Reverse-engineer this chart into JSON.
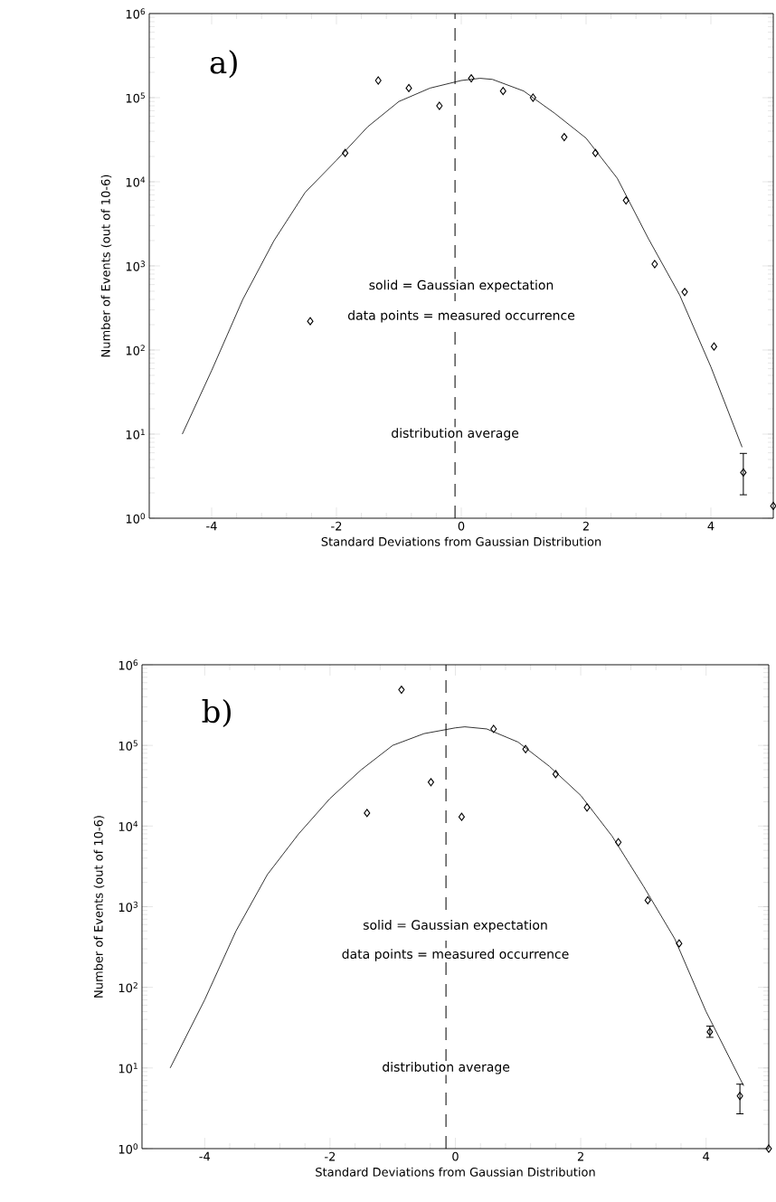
{
  "chart_data": [
    {
      "type": "scatter",
      "xlabel": "Standard Deviations from Gaussian Distribution",
      "ylabel": "Number of Events (out of 10-6)",
      "log": "y",
      "xlim": [
        -5,
        5
      ],
      "xticks": [
        -4,
        -2,
        0,
        2,
        4
      ],
      "ylim": [
        1,
        1000000
      ],
      "yticks": [
        {
          "value": 1,
          "label": "10$^{0}$"
        },
        {
          "value": 10,
          "label": "10$^{1}$"
        },
        {
          "value": 100,
          "label": "10$^{2}$"
        },
        {
          "value": 1000,
          "label": "10$^{3}$"
        },
        {
          "value": 10000,
          "label": "10$^{4}$"
        },
        {
          "value": 100000,
          "label": "10$^{5}$"
        },
        {
          "value": 1000000,
          "label": "10$^{6}$"
        }
      ],
      "annotations": [
        "a)",
        "solid = Gaussian expectation",
        "data points = measured occurrence"
      ],
      "ref_lines": [
        {
          "axis": "x",
          "value": -0.1,
          "label": "distribution average",
          "line_style": "dashed"
        }
      ],
      "series": [
        {
          "type": "line",
          "color": "#000000",
          "marker": "none",
          "x": [
            -4.47,
            -4,
            -3.5,
            -3,
            -2.5,
            -2,
            -1.5,
            -1,
            -0.5,
            0,
            0.3,
            0.5,
            1,
            1.5,
            2,
            2.5,
            3,
            3.5,
            4,
            4.5
          ],
          "values": [
            10,
            57,
            400,
            2000,
            7500,
            18000,
            45000,
            90000,
            130000,
            160000,
            170000,
            165000,
            120000,
            65000,
            33000,
            11000,
            2100,
            450,
            63,
            7
          ]
        },
        {
          "color": "#000000",
          "marker": "diamond",
          "x": [
            -2.42,
            -1.86,
            -1.33,
            -0.84,
            -0.35,
            0.16,
            0.67,
            1.15,
            1.65,
            2.15,
            2.64,
            3.1,
            3.58,
            4.05,
            4.52,
            5.0
          ],
          "values": [
            220,
            22000,
            160000,
            130000,
            80000,
            170000,
            120000,
            100000,
            34000,
            22000,
            6000,
            1050,
            490,
            110,
            3.5,
            1.4
          ],
          "errors": [
            null,
            null,
            null,
            null,
            null,
            null,
            null,
            null,
            null,
            null,
            null,
            null,
            null,
            null,
            [
              1.9,
              5.9
            ],
            null
          ]
        }
      ]
    },
    {
      "type": "scatter",
      "xlabel": "Standard Deviations from Gaussian Distribution",
      "ylabel": "Number of Events (out of 10-6)",
      "log": "y",
      "xlim": [
        -5,
        5
      ],
      "xticks": [
        -4,
        -2,
        0,
        2,
        4
      ],
      "ylim": [
        1,
        1000000
      ],
      "yticks": [
        {
          "value": 1,
          "label": "10$^{0}$"
        },
        {
          "value": 10,
          "label": "10$^{1}$"
        },
        {
          "value": 100,
          "label": "10$^{2}$"
        },
        {
          "value": 1000,
          "label": "10$^{3}$"
        },
        {
          "value": 10000,
          "label": "10$^{4}$"
        },
        {
          "value": 100000,
          "label": "10$^{5}$"
        },
        {
          "value": 1000000,
          "label": "10$^{6}$"
        }
      ],
      "annotations": [
        "b)",
        "solid = Gaussian expectation",
        "data points = measured occurrence"
      ],
      "ref_lines": [
        {
          "axis": "x",
          "value": -0.15,
          "label": "distribution average",
          "line_style": "dashed"
        }
      ],
      "series": [
        {
          "type": "line",
          "color": "#000000",
          "marker": "none",
          "x": [
            -4.55,
            -4,
            -3.5,
            -3,
            -2.5,
            -2,
            -1.5,
            -1,
            -0.5,
            0,
            0.15,
            0.5,
            1,
            1.5,
            2,
            2.5,
            3,
            3.5,
            4,
            4.6
          ],
          "values": [
            10,
            70,
            500,
            2500,
            8000,
            22000,
            50000,
            100000,
            140000,
            165000,
            170000,
            160000,
            110000,
            55000,
            24000,
            7500,
            1800,
            400,
            50,
            6
          ]
        },
        {
          "color": "#000000",
          "marker": "diamond",
          "x": [
            -1.41,
            -0.86,
            -0.39,
            0.1,
            0.61,
            1.12,
            1.6,
            2.1,
            2.6,
            3.07,
            3.57,
            4.06,
            4.54,
            5.0
          ],
          "values": [
            14500,
            490000,
            35000,
            13000,
            160000,
            90000,
            44000,
            17000,
            6300,
            1200,
            350,
            28,
            4.5,
            1
          ],
          "errors": [
            null,
            null,
            null,
            null,
            null,
            null,
            null,
            null,
            null,
            null,
            null,
            [
              24,
              33
            ],
            [
              2.7,
              6.3
            ],
            null
          ]
        }
      ]
    }
  ]
}
